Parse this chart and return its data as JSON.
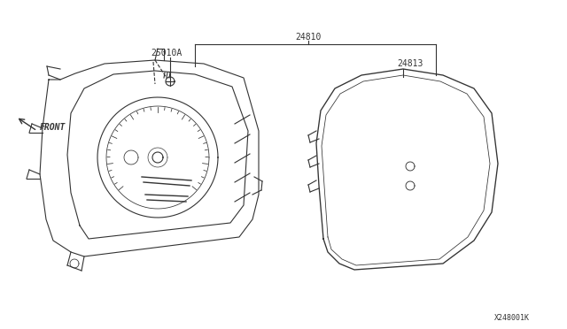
{
  "bg_color": "#ffffff",
  "line_color": "#333333",
  "label_25010A": "25010A",
  "label_24810": "24810",
  "label_24813": "24813",
  "label_front": "FRONT",
  "label_copyright": "X248001K",
  "base_lw": 0.8,
  "annotation_fontsize": 7.0
}
